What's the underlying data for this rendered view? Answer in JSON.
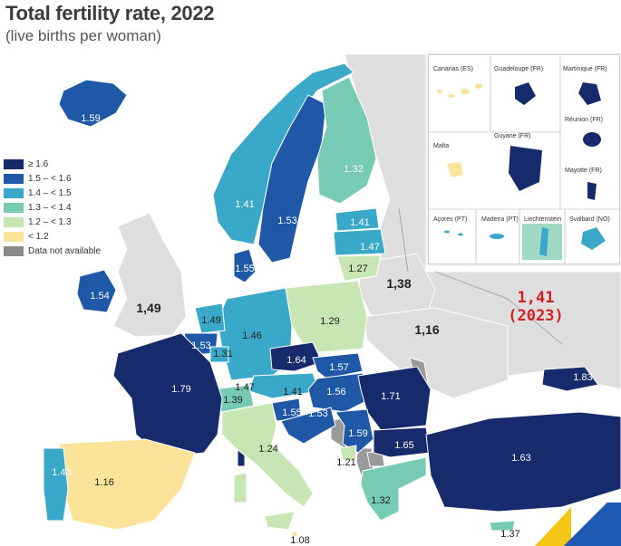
{
  "header": {
    "title": "Total fertility rate, 2022",
    "subtitle": "(live births per woman)"
  },
  "legend": [
    {
      "label": "≥ 1.6",
      "color": "#172a6b"
    },
    {
      "label": "1.5 – < 1.6",
      "color": "#1f58a7"
    },
    {
      "label": "1.4 – < 1.5",
      "color": "#3aa9c9"
    },
    {
      "label": "1.3 – < 1.4",
      "color": "#77cbb4"
    },
    {
      "label": "1.2 – < 1.3",
      "color": "#c8e6b4"
    },
    {
      "label": "< 1.2",
      "color": "#fbe39a"
    },
    {
      "label": "Data not available",
      "color": "#8a8a8a"
    }
  ],
  "countries": {
    "iceland": "1.59",
    "sweden": "1.53",
    "finland": "1.32",
    "norway": "1.41",
    "estonia": "1.41",
    "latvia": "1.47",
    "lithuania": "1.27",
    "denmark": "1.55",
    "ireland": "1.54",
    "netherlands": "1.49",
    "belgium": "1.53",
    "luxembourg": "1.31",
    "germany": "1.46",
    "poland": "1.29",
    "czechia": "1.64",
    "slovakia": "1.57",
    "austria": "1.41",
    "hungary": "1.56",
    "romania": "1.71",
    "switzerland": "1.39",
    "liechtenstein": "1.47",
    "france": "1.79",
    "slovenia": "1.55",
    "croatia": "1.53",
    "serbia": "1.59",
    "bulgaria": "1.65",
    "montenegro": "1.21",
    "italy": "1.24",
    "spain": "1.16",
    "portugal": "1.43",
    "greece": "1.32",
    "malta": "1.08",
    "cyprus": "1.37",
    "turkiye": "1.63",
    "georgia": "1.83"
  },
  "non_eu": {
    "uk": "1,49",
    "belarus": "1,38",
    "ukraine": "1,16",
    "russia_value": "1,41",
    "russia_year": "(2023)"
  },
  "insets": {
    "canarias": "Canarias (ES)",
    "guadeloupe": "Guadeloupe (FR)",
    "martinique": "Martinique (FR)",
    "reunion": "Réunion (FR)",
    "malta": "Malta",
    "guyane": "Guyane (FR)",
    "mayotte": "Mayotte (FR)",
    "acores": "Açores (PT)",
    "madeira": "Madeira (PT)",
    "liechtenstein": "Liechtenstein",
    "svalbard": "Svalbard (NO)"
  }
}
